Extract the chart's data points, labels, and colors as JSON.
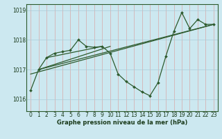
{
  "xlabel": "Graphe pression niveau de la mer (hPa)",
  "bg_color": "#cce8f0",
  "grid_color": "#aaccd8",
  "line_color": "#2d5a2d",
  "marker_color": "#2d5a2d",
  "text_color": "#1a3a1a",
  "xlim": [
    -0.5,
    23.5
  ],
  "ylim": [
    1015.6,
    1019.2
  ],
  "yticks": [
    1016,
    1017,
    1018,
    1019
  ],
  "xticks": [
    0,
    1,
    2,
    3,
    4,
    5,
    6,
    7,
    8,
    9,
    10,
    11,
    12,
    13,
    14,
    15,
    16,
    17,
    18,
    19,
    20,
    21,
    22,
    23
  ],
  "series1_x": [
    0,
    1,
    2,
    3,
    4,
    5,
    6,
    7,
    8,
    9,
    10,
    11,
    12,
    13,
    14,
    15,
    16,
    17,
    18,
    19,
    20,
    21,
    22,
    23
  ],
  "series1_y": [
    1016.3,
    1017.0,
    1017.4,
    1017.55,
    1017.6,
    1017.65,
    1018.0,
    1017.78,
    1017.75,
    1017.78,
    1017.55,
    1016.85,
    1016.6,
    1016.42,
    1016.25,
    1016.12,
    1016.55,
    1017.45,
    1018.28,
    1018.92,
    1018.38,
    1018.68,
    1018.52,
    1018.52
  ],
  "trend1_x": [
    0,
    23
  ],
  "trend1_y": [
    1016.85,
    1018.52
  ],
  "trend2_x": [
    1,
    10
  ],
  "trend2_y": [
    1017.0,
    1017.78
  ],
  "trend3_x": [
    1,
    23
  ],
  "trend3_y": [
    1017.0,
    1018.52
  ],
  "trend4_x": [
    2,
    9
  ],
  "trend4_y": [
    1017.4,
    1017.78
  ]
}
